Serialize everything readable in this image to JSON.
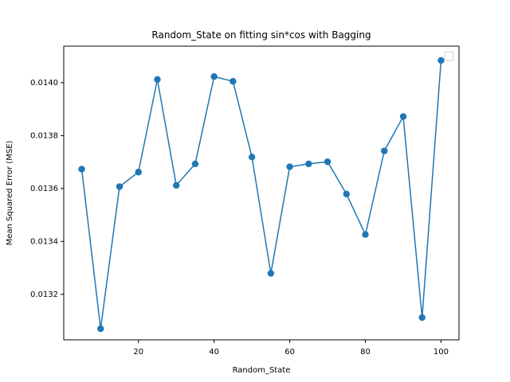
{
  "chart_data": {
    "type": "line",
    "title": "Random_State on fitting sin*cos with Bagging",
    "xlabel": "Random_State",
    "ylabel": "Mean Squared Error (MSE)",
    "xlim": [
      0.25,
      104.75
    ],
    "ylim": [
      0.013028,
      0.014138
    ],
    "xticks": [
      20,
      40,
      60,
      80,
      100
    ],
    "xtick_labels": [
      "20",
      "40",
      "60",
      "80",
      "100"
    ],
    "yticks": [
      0.0132,
      0.0134,
      0.0136,
      0.0138,
      0.014
    ],
    "ytick_labels": [
      "0.0132",
      "0.0134",
      "0.0136",
      "0.0138",
      "0.0140"
    ],
    "grid": false,
    "legend": {
      "placement": "upper right",
      "entries": []
    },
    "series": [
      {
        "color": "#1f77b4",
        "marker": "circle",
        "x": [
          5,
          10,
          15,
          20,
          25,
          30,
          35,
          40,
          45,
          50,
          55,
          60,
          65,
          70,
          75,
          80,
          85,
          90,
          95,
          100
        ],
        "y": [
          0.013673,
          0.01307,
          0.013607,
          0.013662,
          0.014012,
          0.013612,
          0.013693,
          0.014023,
          0.014005,
          0.013719,
          0.013279,
          0.013682,
          0.013693,
          0.013701,
          0.013579,
          0.013426,
          0.013742,
          0.013872,
          0.013112,
          0.014084
        ]
      }
    ]
  }
}
